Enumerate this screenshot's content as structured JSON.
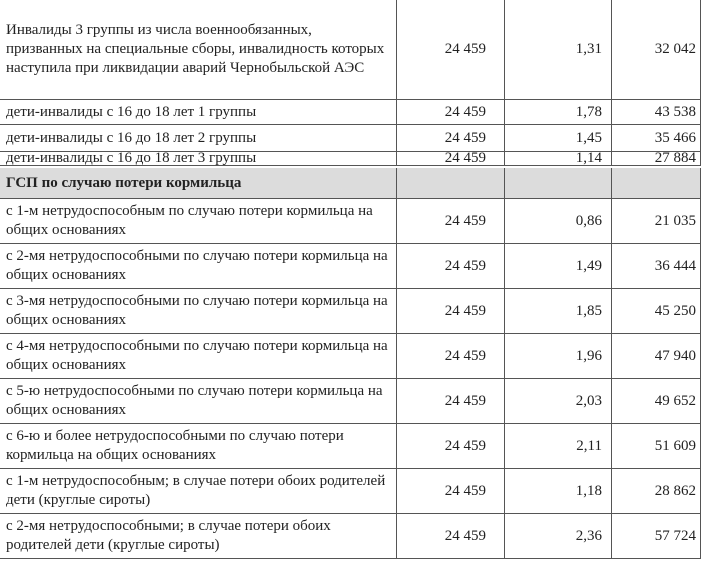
{
  "table": {
    "rows": [
      [
        "Инвалиды 3 группы из числа военнообязанных, призванных на специальные сборы, инвалидность которых наступила при ликвидации аварий Чернобыльской АЭС",
        "24 459",
        "1,31",
        "32 042"
      ],
      [
        "дети-инвалиды с 16 до 18 лет 1 группы",
        "24 459",
        "1,78",
        "43 538"
      ],
      [
        "дети-инвалиды с 16 до 18 лет 2 группы",
        "24 459",
        "1,45",
        "35 466"
      ],
      [
        "дети-инвалиды с 16 до 18 лет 3 группы",
        "24 459",
        "1,14",
        "27 884"
      ]
    ],
    "section": "ГСП по случаю потери кормильца",
    "section_rows": [
      [
        "с 1-м нетрудоспособным по случаю потери кормильца на общих основаниях",
        "24 459",
        "0,86",
        "21 035"
      ],
      [
        "с 2-мя нетрудоспособными по случаю потери кормильца на общих основаниях",
        "24 459",
        "1,49",
        "36 444"
      ],
      [
        "с 3-мя нетрудоспособными по случаю потери кормильца на общих основаниях",
        "24 459",
        "1,85",
        "45 250"
      ],
      [
        "с 4-мя нетрудоспособными по случаю потери кормильца на общих основаниях",
        "24 459",
        "1,96",
        "47 940"
      ],
      [
        "с 5-ю нетрудоспособными по случаю потери кормильца на общих основаниях",
        "24 459",
        "2,03",
        "49 652"
      ],
      [
        "с 6-ю и более нетрудоспособными по случаю потери кормильца на общих основаниях",
        "24 459",
        "2,11",
        "51 609"
      ],
      [
        "с 1-м нетрудоспособным; в случае потери обоих родителей дети (круглые сироты)",
        "24 459",
        "1,18",
        "28 862"
      ],
      [
        "с 2-мя нетрудоспособными; в случае потери обоих родителей дети (круглые сироты)",
        "24 459",
        "2,36",
        "57 724"
      ]
    ]
  }
}
